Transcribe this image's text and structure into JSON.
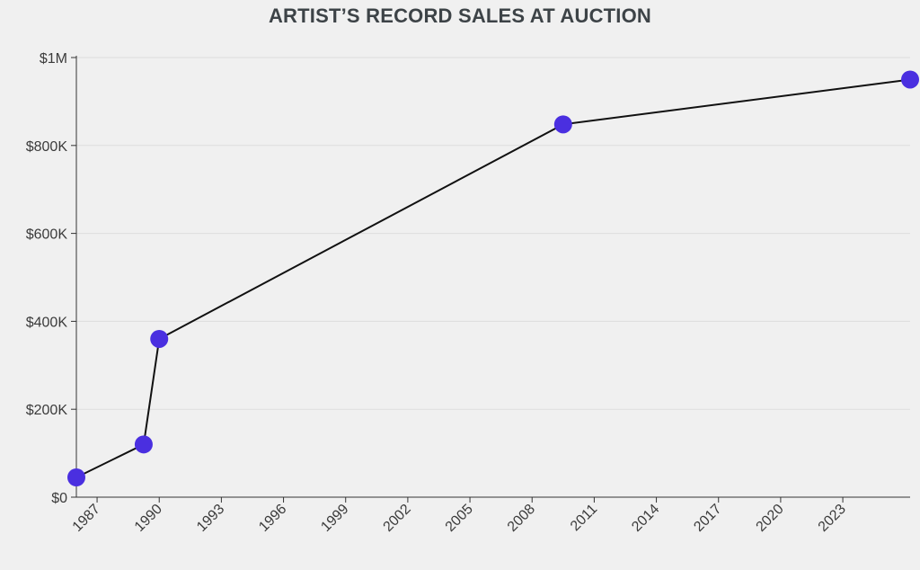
{
  "chart_data": {
    "type": "line",
    "title": "ARTIST’S RECORD SALES AT AUCTION",
    "xlabel": "",
    "ylabel": "",
    "x": [
      1986.0,
      1989.25,
      1990.0,
      2009.5,
      2026.25
    ],
    "values": [
      45000,
      120000,
      360000,
      848000,
      950000
    ],
    "xlim": [
      1986,
      2026.25
    ],
    "ylim": [
      0,
      1000000
    ],
    "x_ticks": [
      1987,
      1990,
      1993,
      1996,
      1999,
      2002,
      2005,
      2008,
      2011,
      2014,
      2017,
      2020,
      2023
    ],
    "y_ticks": [
      0,
      200000,
      400000,
      600000,
      800000,
      1000000
    ],
    "y_tick_labels": [
      "$0",
      "$200K",
      "$400K",
      "$600K",
      "$800K",
      "$1M"
    ],
    "grid": "horizontal",
    "legend": "none",
    "colors": {
      "line": "#111111",
      "marker": "#4a2fe0",
      "grid": "#dddddd",
      "axis": "#333333"
    }
  }
}
